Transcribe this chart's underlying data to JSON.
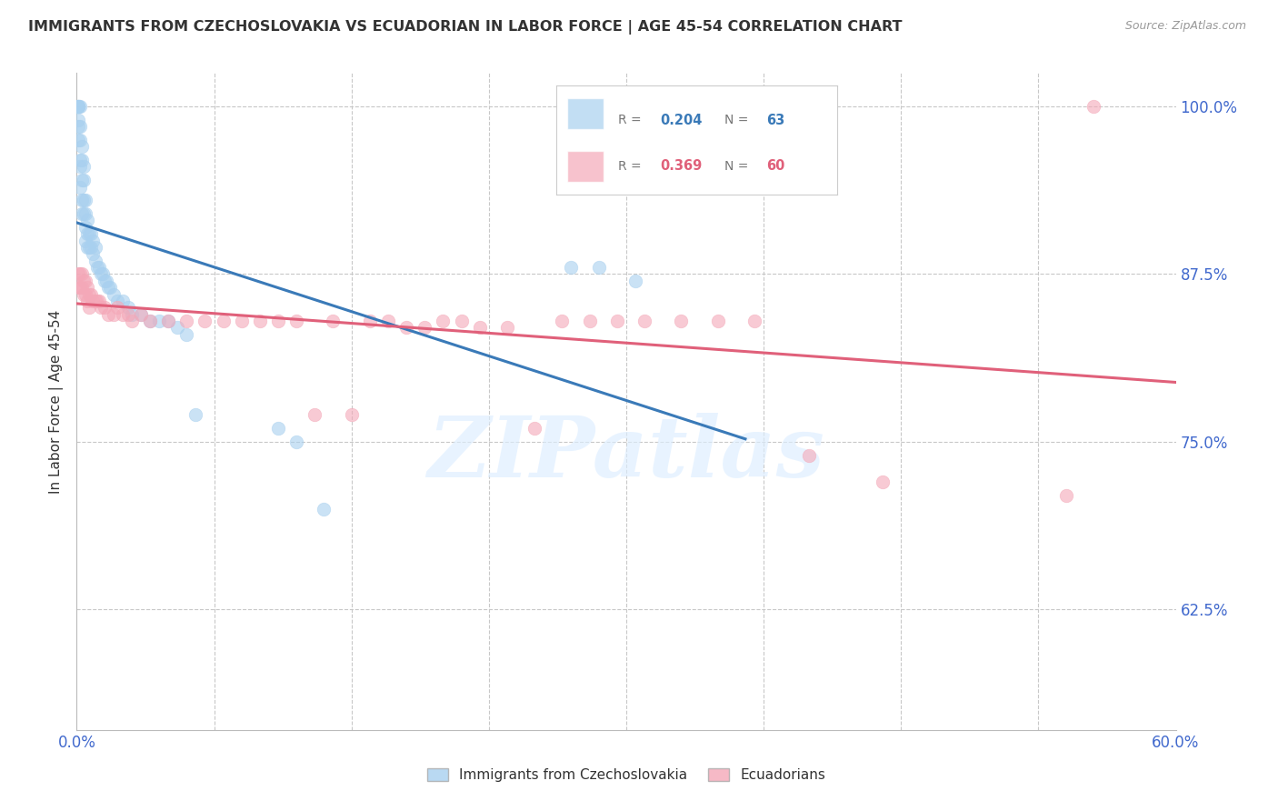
{
  "title": "IMMIGRANTS FROM CZECHOSLOVAKIA VS ECUADORIAN IN LABOR FORCE | AGE 45-54 CORRELATION CHART",
  "source": "Source: ZipAtlas.com",
  "ylabel": "In Labor Force | Age 45-54",
  "xlim": [
    0.0,
    0.6
  ],
  "ylim": [
    0.535,
    1.025
  ],
  "yticks": [
    0.625,
    0.75,
    0.875,
    1.0
  ],
  "xticks_show": [
    0.0,
    0.6
  ],
  "xticks_minor": [
    0.075,
    0.15,
    0.225,
    0.3,
    0.375,
    0.45,
    0.525
  ],
  "blue_R": 0.204,
  "blue_N": 63,
  "pink_R": 0.369,
  "pink_N": 60,
  "blue_color": "#a8d0ef",
  "pink_color": "#f4a8b8",
  "blue_line_color": "#3a7ab8",
  "pink_line_color": "#e0607a",
  "legend_label_blue": "Immigrants from Czechoslovakia",
  "legend_label_pink": "Ecuadorians",
  "watermark_text": "ZIPatlas",
  "title_color": "#333333",
  "axis_label_color": "#333333",
  "tick_label_color": "#4169cd",
  "grid_color": "#c8c8c8",
  "blue_x": [
    0.001,
    0.001,
    0.001,
    0.001,
    0.001,
    0.001,
    0.001,
    0.002,
    0.002,
    0.002,
    0.002,
    0.002,
    0.002,
    0.003,
    0.003,
    0.003,
    0.003,
    0.003,
    0.004,
    0.004,
    0.004,
    0.004,
    0.005,
    0.005,
    0.005,
    0.005,
    0.006,
    0.006,
    0.006,
    0.007,
    0.007,
    0.008,
    0.008,
    0.009,
    0.009,
    0.01,
    0.01,
    0.011,
    0.012,
    0.013,
    0.014,
    0.015,
    0.016,
    0.017,
    0.018,
    0.02,
    0.022,
    0.025,
    0.028,
    0.03,
    0.035,
    0.04,
    0.045,
    0.05,
    0.055,
    0.06,
    0.065,
    0.11,
    0.12,
    0.135,
    0.27,
    0.285,
    0.305
  ],
  "blue_y": [
    1.0,
    1.0,
    1.0,
    1.0,
    0.99,
    0.985,
    0.975,
    1.0,
    0.985,
    0.975,
    0.96,
    0.955,
    0.94,
    0.97,
    0.96,
    0.945,
    0.93,
    0.92,
    0.955,
    0.945,
    0.93,
    0.92,
    0.93,
    0.92,
    0.91,
    0.9,
    0.915,
    0.905,
    0.895,
    0.905,
    0.895,
    0.905,
    0.895,
    0.9,
    0.89,
    0.895,
    0.885,
    0.88,
    0.88,
    0.875,
    0.875,
    0.87,
    0.87,
    0.865,
    0.865,
    0.86,
    0.855,
    0.855,
    0.85,
    0.845,
    0.845,
    0.84,
    0.84,
    0.84,
    0.835,
    0.83,
    0.77,
    0.76,
    0.75,
    0.7,
    0.88,
    0.88,
    0.87
  ],
  "pink_x": [
    0.001,
    0.001,
    0.002,
    0.002,
    0.003,
    0.003,
    0.004,
    0.004,
    0.005,
    0.005,
    0.006,
    0.006,
    0.007,
    0.007,
    0.008,
    0.009,
    0.01,
    0.011,
    0.012,
    0.013,
    0.015,
    0.017,
    0.02,
    0.022,
    0.025,
    0.028,
    0.03,
    0.035,
    0.04,
    0.05,
    0.06,
    0.07,
    0.08,
    0.09,
    0.1,
    0.11,
    0.12,
    0.13,
    0.14,
    0.15,
    0.16,
    0.17,
    0.18,
    0.19,
    0.2,
    0.21,
    0.22,
    0.235,
    0.25,
    0.265,
    0.28,
    0.295,
    0.31,
    0.33,
    0.35,
    0.37,
    0.4,
    0.44,
    0.54,
    0.555
  ],
  "pink_y": [
    0.875,
    0.865,
    0.875,
    0.865,
    0.875,
    0.865,
    0.87,
    0.86,
    0.87,
    0.86,
    0.865,
    0.855,
    0.86,
    0.85,
    0.86,
    0.855,
    0.855,
    0.855,
    0.855,
    0.85,
    0.85,
    0.845,
    0.845,
    0.85,
    0.845,
    0.845,
    0.84,
    0.845,
    0.84,
    0.84,
    0.84,
    0.84,
    0.84,
    0.84,
    0.84,
    0.84,
    0.84,
    0.77,
    0.84,
    0.77,
    0.84,
    0.84,
    0.835,
    0.835,
    0.84,
    0.84,
    0.835,
    0.835,
    0.76,
    0.84,
    0.84,
    0.84,
    0.84,
    0.84,
    0.84,
    0.84,
    0.74,
    0.72,
    0.71,
    1.0
  ]
}
